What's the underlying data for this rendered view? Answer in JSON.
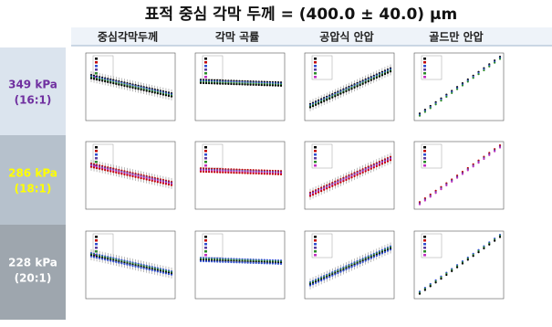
{
  "header": {
    "title": "표적 중심 각막 두께 = (400.0 ± 40.0) μm"
  },
  "columns": [
    "중심각막두께",
    "각막 곡률",
    "공압식 안압",
    "골드만 안압"
  ],
  "rows": [
    {
      "pressure": "349 kPa",
      "ratio": "(16:1)"
    },
    {
      "pressure": "286 kPa",
      "ratio": "(18:1)"
    },
    {
      "pressure": "228 kPa",
      "ratio": "(20:1)"
    }
  ]
}
